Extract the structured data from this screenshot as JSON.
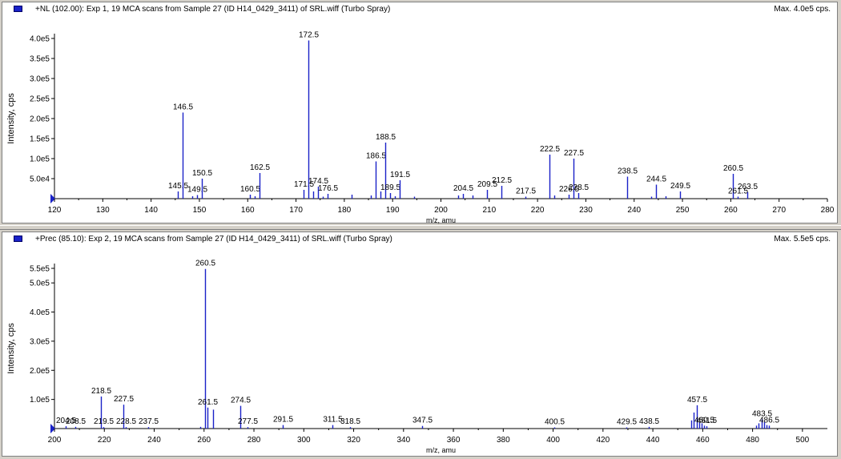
{
  "panels": [
    {
      "title": "+NL (102.00): Exp 1, 19 MCA scans from Sample 27 (ID H14_0429_3411) of SRL.wiff (Turbo Spray)",
      "max_label": "Max. 4.0e5 cps."
    },
    {
      "title": "+Prec (85.10): Exp 2, 19 MCA scans from Sample 27 (ID H14_0429_3411) of SRL.wiff (Turbo Spray)",
      "max_label": "Max. 5.5e5 cps."
    }
  ],
  "colors": {
    "peak": "#1a22c8",
    "axis": "#000000",
    "marker": "#1a22c8",
    "background": "#ffffff",
    "frame": "#d4d0c8"
  },
  "chart_data": [
    {
      "type": "bar",
      "xlabel": "m/z, amu",
      "ylabel": "Intensity, cps",
      "xlim": [
        120,
        280
      ],
      "ylim": [
        0,
        400000
      ],
      "x_ticks": [
        "120",
        "130",
        "140",
        "150",
        "160",
        "170",
        "180",
        "190",
        "200",
        "210",
        "220",
        "230",
        "240",
        "250",
        "260",
        "270",
        "280"
      ],
      "y_ticks": [
        "5.0e4",
        "1.0e5",
        "1.5e5",
        "2.0e5",
        "2.5e5",
        "3.0e5",
        "3.5e5",
        "4.0e5"
      ],
      "peaks": [
        {
          "mz": 145.5,
          "intensity": 18000,
          "label": "145.5"
        },
        {
          "mz": 146.5,
          "intensity": 215000,
          "label": "146.5"
        },
        {
          "mz": 148.5,
          "intensity": 6000,
          "label": ""
        },
        {
          "mz": 149.5,
          "intensity": 9000,
          "label": "149.5"
        },
        {
          "mz": 150.5,
          "intensity": 50000,
          "label": "150.5"
        },
        {
          "mz": 160.5,
          "intensity": 10000,
          "label": "160.5"
        },
        {
          "mz": 161.5,
          "intensity": 6000,
          "label": ""
        },
        {
          "mz": 162.5,
          "intensity": 64000,
          "label": "162.5"
        },
        {
          "mz": 171.5,
          "intensity": 22000,
          "label": "171.5"
        },
        {
          "mz": 172.5,
          "intensity": 395000,
          "label": "172.5"
        },
        {
          "mz": 173.5,
          "intensity": 18000,
          "label": ""
        },
        {
          "mz": 174.5,
          "intensity": 30000,
          "label": "174.5"
        },
        {
          "mz": 175.5,
          "intensity": 5000,
          "label": ""
        },
        {
          "mz": 176.5,
          "intensity": 12000,
          "label": "176.5"
        },
        {
          "mz": 181.5,
          "intensity": 10000,
          "label": ""
        },
        {
          "mz": 185.5,
          "intensity": 8000,
          "label": ""
        },
        {
          "mz": 186.5,
          "intensity": 93000,
          "label": "186.5"
        },
        {
          "mz": 187.5,
          "intensity": 18000,
          "label": ""
        },
        {
          "mz": 188.5,
          "intensity": 140000,
          "label": "188.5"
        },
        {
          "mz": 189.5,
          "intensity": 14000,
          "label": "189.5"
        },
        {
          "mz": 190.5,
          "intensity": 6000,
          "label": ""
        },
        {
          "mz": 191.5,
          "intensity": 46000,
          "label": "191.5"
        },
        {
          "mz": 194.5,
          "intensity": 5000,
          "label": ""
        },
        {
          "mz": 203.5,
          "intensity": 8000,
          "label": ""
        },
        {
          "mz": 204.5,
          "intensity": 12000,
          "label": "204.5"
        },
        {
          "mz": 206.5,
          "intensity": 8000,
          "label": ""
        },
        {
          "mz": 209.5,
          "intensity": 22000,
          "label": "209.5"
        },
        {
          "mz": 212.5,
          "intensity": 32000,
          "label": "212.5"
        },
        {
          "mz": 217.5,
          "intensity": 5000,
          "label": "217.5"
        },
        {
          "mz": 222.5,
          "intensity": 110000,
          "label": "222.5"
        },
        {
          "mz": 223.5,
          "intensity": 8000,
          "label": ""
        },
        {
          "mz": 226.5,
          "intensity": 10000,
          "label": "226.5"
        },
        {
          "mz": 227.5,
          "intensity": 100000,
          "label": "227.5"
        },
        {
          "mz": 228.5,
          "intensity": 14000,
          "label": "228.5"
        },
        {
          "mz": 238.5,
          "intensity": 55000,
          "label": "238.5"
        },
        {
          "mz": 243.5,
          "intensity": 5000,
          "label": ""
        },
        {
          "mz": 244.5,
          "intensity": 35000,
          "label": "244.5"
        },
        {
          "mz": 246.5,
          "intensity": 6000,
          "label": ""
        },
        {
          "mz": 249.5,
          "intensity": 18000,
          "label": "249.5"
        },
        {
          "mz": 260.5,
          "intensity": 62000,
          "label": "260.5"
        },
        {
          "mz": 261.5,
          "intensity": 5000,
          "label": "261.5"
        },
        {
          "mz": 263.5,
          "intensity": 16000,
          "label": "263.5"
        }
      ]
    },
    {
      "type": "bar",
      "xlabel": "m/z, amu",
      "ylabel": "Intensity, cps",
      "xlim": [
        200,
        510
      ],
      "ylim": [
        0,
        550000
      ],
      "x_ticks": [
        "200",
        "220",
        "240",
        "260",
        "280",
        "300",
        "320",
        "340",
        "360",
        "380",
        "400",
        "420",
        "440",
        "460",
        "480",
        "500"
      ],
      "y_ticks": [
        "1.0e5",
        "2.0e5",
        "3.0e5",
        "4.0e5",
        "5.0e5",
        "5.5e5"
      ],
      "peaks": [
        {
          "mz": 204.5,
          "intensity": 8000,
          "label": "204.5"
        },
        {
          "mz": 208.5,
          "intensity": 6000,
          "label": "208.5"
        },
        {
          "mz": 218.5,
          "intensity": 110000,
          "label": "218.5"
        },
        {
          "mz": 219.5,
          "intensity": 5000,
          "label": "219.5"
        },
        {
          "mz": 227.5,
          "intensity": 82000,
          "label": "227.5"
        },
        {
          "mz": 228.5,
          "intensity": 5000,
          "label": "228.5"
        },
        {
          "mz": 237.5,
          "intensity": 5000,
          "label": "237.5"
        },
        {
          "mz": 258.5,
          "intensity": 6000,
          "label": ""
        },
        {
          "mz": 260.5,
          "intensity": 548000,
          "label": "260.5"
        },
        {
          "mz": 261.5,
          "intensity": 72000,
          "label": "261.5"
        },
        {
          "mz": 263.5,
          "intensity": 65000,
          "label": ""
        },
        {
          "mz": 274.5,
          "intensity": 78000,
          "label": "274.5"
        },
        {
          "mz": 277.5,
          "intensity": 5000,
          "label": "277.5"
        },
        {
          "mz": 291.5,
          "intensity": 12000,
          "label": "291.5"
        },
        {
          "mz": 311.5,
          "intensity": 12000,
          "label": "311.5"
        },
        {
          "mz": 318.5,
          "intensity": 5000,
          "label": "318.5"
        },
        {
          "mz": 347.5,
          "intensity": 9000,
          "label": "347.5"
        },
        {
          "mz": 400.5,
          "intensity": 4000,
          "label": "400.5"
        },
        {
          "mz": 429.5,
          "intensity": 4000,
          "label": "429.5"
        },
        {
          "mz": 438.5,
          "intensity": 6000,
          "label": "438.5"
        },
        {
          "mz": 455.5,
          "intensity": 28000,
          "label": ""
        },
        {
          "mz": 456.5,
          "intensity": 55000,
          "label": ""
        },
        {
          "mz": 457.5,
          "intensity": 80000,
          "label": "457.5"
        },
        {
          "mz": 458.5,
          "intensity": 22000,
          "label": ""
        },
        {
          "mz": 459.5,
          "intensity": 18000,
          "label": ""
        },
        {
          "mz": 460.5,
          "intensity": 10000,
          "label": "460.5"
        },
        {
          "mz": 461.5,
          "intensity": 8000,
          "label": "461.5"
        },
        {
          "mz": 481.5,
          "intensity": 10000,
          "label": ""
        },
        {
          "mz": 482.5,
          "intensity": 18000,
          "label": ""
        },
        {
          "mz": 483.5,
          "intensity": 32000,
          "label": "483.5"
        },
        {
          "mz": 484.5,
          "intensity": 22000,
          "label": ""
        },
        {
          "mz": 485.5,
          "intensity": 12000,
          "label": ""
        },
        {
          "mz": 486.5,
          "intensity": 10000,
          "label": "486.5"
        }
      ]
    }
  ]
}
